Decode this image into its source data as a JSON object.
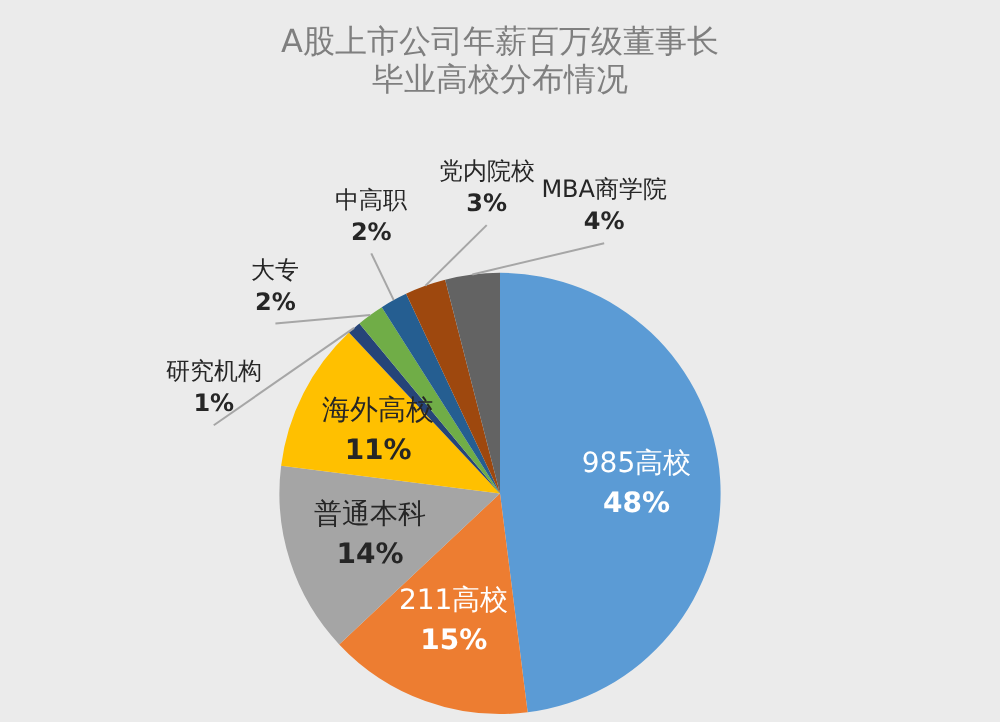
{
  "chart_data": {
    "type": "pie",
    "title": "A股上市公司年薪百万级董事长毕业高校分布情况",
    "categories": [
      "985高校",
      "211高校",
      "普通本科",
      "海外高校",
      "研究机构",
      "大专",
      "中高职",
      "党内院校",
      "MBA商学院"
    ],
    "values": [
      48,
      15,
      14,
      11,
      1,
      2,
      2,
      3,
      4
    ],
    "value_labels": [
      "48%",
      "15%",
      "14%",
      "11%",
      "1%",
      "2%",
      "2%",
      "3%",
      "4%"
    ],
    "colors": [
      "#5b9bd5",
      "#ed7d31",
      "#a5a5a5",
      "#ffc000",
      "#264478",
      "#70ad47",
      "#255e91",
      "#9e480e",
      "#636363"
    ],
    "legend": false
  }
}
